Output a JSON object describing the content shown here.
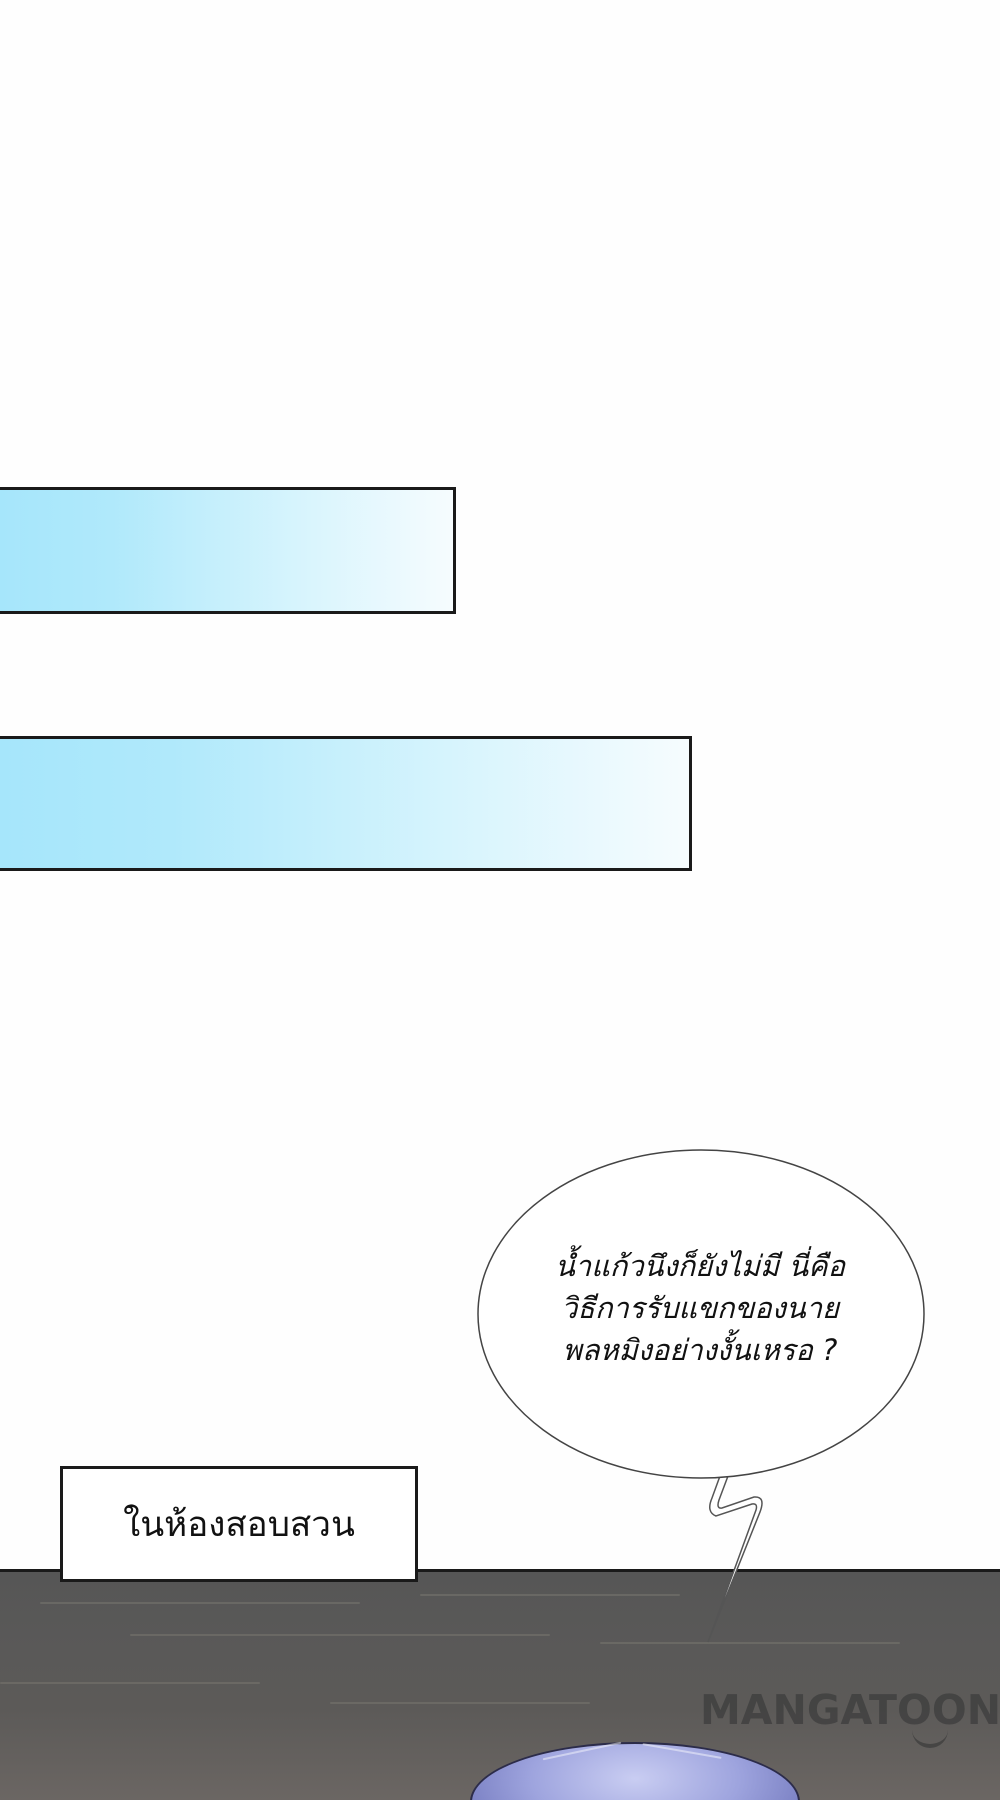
{
  "panels": {
    "bars": [
      {
        "fill": "light-blue-gradient"
      },
      {
        "fill": "light-blue-gradient"
      }
    ]
  },
  "speech_bubble": {
    "lines": [
      "น้ำแก้วนึงก็ยังไม่มี นี่คือ",
      "วิธีการรับแขกของนาย",
      "พลหมิงอย่างงั้นเหรอ ?"
    ]
  },
  "caption": {
    "text": "ในห้องสอบสวน"
  },
  "watermark": {
    "text": "MANGATOON"
  },
  "colors": {
    "background": "#fefefe",
    "bar_blue": "#a6e6fb",
    "outline": "#1a1a1a",
    "panel_gray": "#5a5958",
    "hair": "#9ea4de"
  }
}
